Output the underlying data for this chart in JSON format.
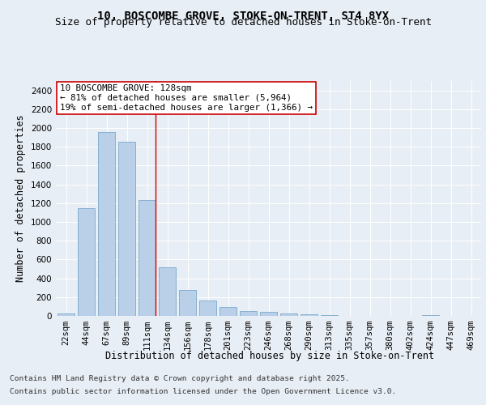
{
  "title_line1": "10, BOSCOMBE GROVE, STOKE-ON-TRENT, ST4 8YX",
  "title_line2": "Size of property relative to detached houses in Stoke-on-Trent",
  "xlabel": "Distribution of detached houses by size in Stoke-on-Trent",
  "ylabel": "Number of detached properties",
  "categories": [
    "22sqm",
    "44sqm",
    "67sqm",
    "89sqm",
    "111sqm",
    "134sqm",
    "156sqm",
    "178sqm",
    "201sqm",
    "223sqm",
    "246sqm",
    "268sqm",
    "290sqm",
    "313sqm",
    "335sqm",
    "357sqm",
    "380sqm",
    "402sqm",
    "424sqm",
    "447sqm",
    "469sqm"
  ],
  "values": [
    25,
    1150,
    1960,
    1850,
    1230,
    520,
    275,
    160,
    93,
    50,
    42,
    25,
    18,
    10,
    0,
    0,
    0,
    0,
    12,
    0,
    0
  ],
  "bar_color": "#bad0e8",
  "bar_edge_color": "#6a9ec5",
  "highlight_bar_index": 4,
  "red_line_index": 4,
  "highlight_color": "#cc0000",
  "annotation_text": "10 BOSCOMBE GROVE: 128sqm\n← 81% of detached houses are smaller (5,964)\n19% of semi-detached houses are larger (1,366) →",
  "annotation_box_color": "#ffffff",
  "annotation_border_color": "#cc0000",
  "ylim": [
    0,
    2500
  ],
  "yticks": [
    0,
    200,
    400,
    600,
    800,
    1000,
    1200,
    1400,
    1600,
    1800,
    2000,
    2200,
    2400
  ],
  "footer_line1": "Contains HM Land Registry data © Crown copyright and database right 2025.",
  "footer_line2": "Contains public sector information licensed under the Open Government Licence v3.0.",
  "bg_color": "#e8eef5",
  "grid_color": "#ffffff",
  "title_fontsize": 10,
  "subtitle_fontsize": 9,
  "axis_label_fontsize": 8.5,
  "tick_fontsize": 7.5,
  "annotation_fontsize": 7.8,
  "footer_fontsize": 6.8
}
